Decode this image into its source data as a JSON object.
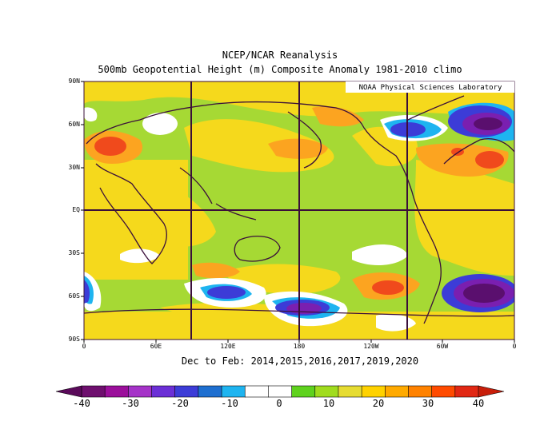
{
  "header": {
    "title": "NCEP/NCAR Reanalysis",
    "subtitle": "500mb Geopotential Height (m) Composite Anomaly 1981-2010 climo"
  },
  "map": {
    "credit": "NOAA Physical Sciences Laboratory",
    "lat_labels": [
      "90N",
      "60N",
      "30N",
      "EQ",
      "30S",
      "60S",
      "90S"
    ],
    "lon_labels": [
      "0",
      "60E",
      "120E",
      "180",
      "120W",
      "60W",
      "0"
    ],
    "period": "Dec to Feb: 2014,2015,2016,2017,2019,2020"
  },
  "colorbar": {
    "labels": [
      "-40",
      "-30",
      "-20",
      "-10",
      "0",
      "10",
      "20",
      "30",
      "40"
    ],
    "colors": [
      "#6e0f6e",
      "#9b0f9b",
      "#a533c8",
      "#6b2fd6",
      "#3c3cd7",
      "#1e6fd0",
      "#1eb4f0",
      "#ffffff",
      "#ffffff",
      "#5fd21e",
      "#a0dc1e",
      "#e6dc32",
      "#ffd200",
      "#ffaa00",
      "#ff8200",
      "#ff4b00",
      "#e12814"
    ]
  },
  "colors": {
    "base": "#a6d934",
    "yellow": "#f5d91c",
    "orange": "#fca420",
    "red": "#f04a1c",
    "white": "#ffffff",
    "cyan": "#1eb4f0",
    "blue": "#3c3cd7",
    "purple": "#7a1fb0",
    "coast": "#3a0f3a"
  }
}
